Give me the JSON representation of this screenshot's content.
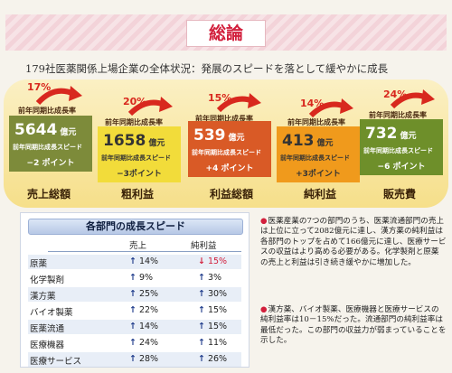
{
  "header": {
    "title": "総論"
  },
  "subtitle": "179社医薬関係上場企業の全体状況：発展のスピードを落として緩やかに成長",
  "metrics": [
    {
      "pct": "17%",
      "period_label": "前年同期比成長率",
      "value": "5644",
      "unit": "億元",
      "speed_label": "前年同期比成長スピード",
      "change": "−2 ポイント",
      "name": "売上総額",
      "color": "#7d8b3a"
    },
    {
      "pct": "20%",
      "period_label": "前年同期比成長率",
      "value": "1658",
      "unit": "億元",
      "speed_label": "前年同期比成長スピード",
      "change": "−3ポイント",
      "name": "粗利益",
      "color": "#f2dc3a"
    },
    {
      "pct": "15%",
      "period_label": "前年同期比成長率",
      "value": "539",
      "unit": "億元",
      "speed_label": "前年同期比成長スピード",
      "change": "+4 ポイント",
      "name": "利益総額",
      "color": "#d95a26"
    },
    {
      "pct": "14%",
      "period_label": "前年同期比成長率",
      "value": "413",
      "unit": "億元",
      "speed_label": "前年同期比成長スピード",
      "change": "+3ポイント",
      "name": "純利益",
      "color": "#f09a1c"
    },
    {
      "pct": "24%",
      "period_label": "前年同期比成長率",
      "value": "732",
      "unit": "億元",
      "speed_label": "前年同期比成長スピード",
      "change": "−6 ポイント",
      "name": "販売費",
      "color": "#6e8f2a"
    }
  ],
  "table": {
    "title": "各部門の成長スピード",
    "col_sales": "売上",
    "col_profit": "純利益",
    "rows": [
      {
        "name": "原薬",
        "sales": "14%",
        "profit": "15%",
        "profit_dir": "down"
      },
      {
        "name": "化学製剤",
        "sales": "9%",
        "profit": "3%",
        "profit_dir": "up"
      },
      {
        "name": "漢方薬",
        "sales": "25%",
        "profit": "30%",
        "profit_dir": "up"
      },
      {
        "name": "バイオ製薬",
        "sales": "22%",
        "profit": "15%",
        "profit_dir": "up"
      },
      {
        "name": "医薬流通",
        "sales": "14%",
        "profit": "15%",
        "profit_dir": "up"
      },
      {
        "name": "医療機器",
        "sales": "24%",
        "profit": "11%",
        "profit_dir": "up"
      },
      {
        "name": "医療サービス",
        "sales": "28%",
        "profit": "26%",
        "profit_dir": "up"
      }
    ]
  },
  "notes": [
    "医薬産業の7つの部門のうち、医薬流通部門の売上は上位に立って2082億元に達し、漢方薬の純利益は各部門のトップを占めて166億元に達し、医療サービスの収益はより高める必要がある。化学製剤と原薬の売上と利益は引き続き緩やかに増加した。",
    "漢方薬、バイオ製薬、医療機器と医療サービスの純利益率は10－15%だった。流通部門の純利益率は最低だった。この部門の収益力が弱まっていることを示した。"
  ],
  "icons": {
    "growth": "curved-arrow-icon",
    "bullet": "red-dot-icon",
    "up": "up-arrow-icon",
    "down": "down-arrow-icon"
  }
}
